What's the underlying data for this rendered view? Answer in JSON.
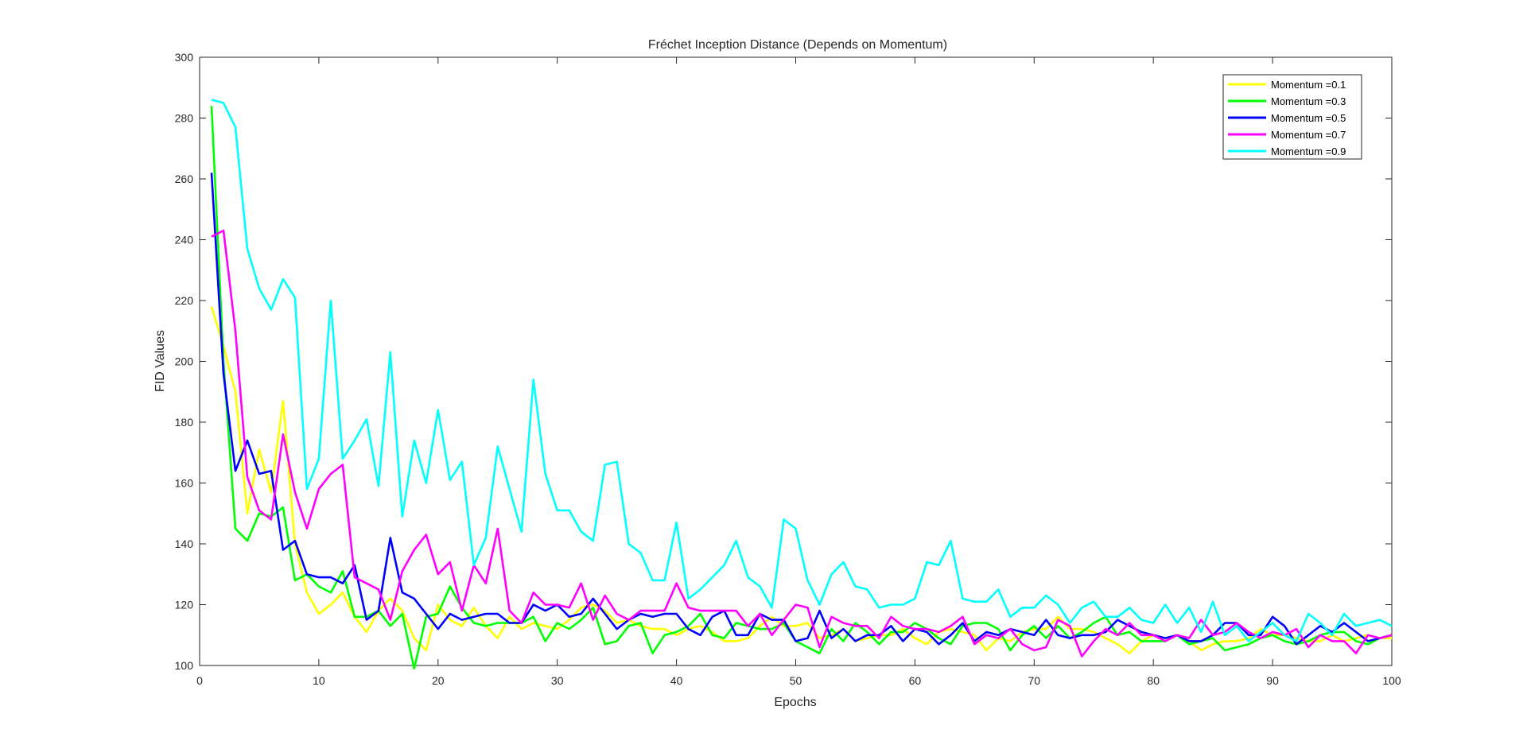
{
  "chart_data": {
    "type": "line",
    "title": "Fréchet Inception Distance (Depends on Momentum)",
    "xlabel": "Epochs",
    "ylabel": "FID Values",
    "xlim": [
      0,
      100
    ],
    "ylim": [
      100,
      300
    ],
    "xticks": [
      "0",
      "10",
      "20",
      "30",
      "40",
      "50",
      "60",
      "70",
      "80",
      "90",
      "100"
    ],
    "yticks": [
      "100",
      "120",
      "140",
      "160",
      "180",
      "200",
      "220",
      "240",
      "260",
      "280",
      "300"
    ],
    "grid": false,
    "legend_position": "top-right",
    "x": [
      1,
      2,
      3,
      4,
      5,
      6,
      7,
      8,
      9,
      10,
      11,
      12,
      13,
      14,
      15,
      16,
      17,
      18,
      19,
      20,
      21,
      22,
      23,
      24,
      25,
      26,
      27,
      28,
      29,
      30,
      31,
      32,
      33,
      34,
      35,
      36,
      37,
      38,
      39,
      40,
      41,
      42,
      43,
      44,
      45,
      46,
      47,
      48,
      49,
      50,
      51,
      52,
      53,
      54,
      55,
      56,
      57,
      58,
      59,
      60,
      61,
      62,
      63,
      64,
      65,
      66,
      67,
      68,
      69,
      70,
      71,
      72,
      73,
      74,
      75,
      76,
      77,
      78,
      79,
      80,
      81,
      82,
      83,
      84,
      85,
      86,
      87,
      88,
      89,
      90,
      91,
      92,
      93,
      94,
      95,
      96,
      97,
      98,
      99,
      100
    ],
    "series": [
      {
        "name": "Momentum =0.1",
        "color": "#ffff00",
        "values": [
          218,
          205,
          190,
          150,
          171,
          157,
          187,
          140,
          124,
          117,
          120,
          124,
          116,
          111,
          118,
          122,
          118,
          109,
          105,
          120,
          115,
          113,
          119,
          113,
          109,
          116,
          112,
          114,
          113,
          112,
          115,
          119,
          120,
          118,
          114,
          115,
          113,
          112,
          112,
          110,
          112,
          113,
          111,
          108,
          108,
          109,
          113,
          116,
          113,
          113,
          114,
          109,
          110,
          112,
          108,
          109,
          110,
          110,
          112,
          109,
          107,
          111,
          112,
          111,
          110,
          105,
          109,
          108,
          111,
          112,
          112,
          116,
          112,
          112,
          111,
          109,
          107,
          104,
          108,
          110,
          108,
          110,
          108,
          105,
          107,
          108,
          108,
          109,
          112,
          110,
          110,
          109,
          108,
          108,
          110,
          108,
          109,
          110,
          109,
          109
        ]
      },
      {
        "name": "Momentum =0.3",
        "color": "#00ff00",
        "values": [
          284,
          200,
          145,
          141,
          150,
          149,
          152,
          128,
          130,
          126,
          124,
          131,
          116,
          116,
          118,
          113,
          117,
          99,
          116,
          117,
          126,
          119,
          114,
          113,
          114,
          114,
          114,
          116,
          108,
          114,
          112,
          115,
          119,
          107,
          108,
          113,
          114,
          104,
          110,
          111,
          113,
          117,
          110,
          109,
          114,
          113,
          112,
          112,
          114,
          108,
          106,
          104,
          112,
          108,
          114,
          111,
          107,
          111,
          111,
          114,
          112,
          109,
          107,
          113,
          114,
          114,
          112,
          105,
          110,
          113,
          109,
          113,
          109,
          111,
          114,
          116,
          110,
          111,
          108,
          108,
          108,
          110,
          107,
          108,
          109,
          105,
          106,
          107,
          109,
          110,
          108,
          107,
          108,
          110,
          111,
          111,
          108,
          107,
          109,
          110
        ]
      },
      {
        "name": "Momentum =0.5",
        "color": "#0000ff",
        "values": [
          262,
          196,
          164,
          174,
          163,
          164,
          138,
          141,
          130,
          129,
          129,
          127,
          133,
          115,
          118,
          142,
          124,
          122,
          117,
          112,
          117,
          115,
          116,
          117,
          117,
          114,
          114,
          120,
          118,
          120,
          116,
          117,
          122,
          117,
          112,
          115,
          117,
          116,
          117,
          117,
          112,
          110,
          116,
          118,
          110,
          110,
          117,
          115,
          115,
          108,
          109,
          118,
          109,
          112,
          108,
          110,
          110,
          113,
          108,
          112,
          111,
          107,
          110,
          114,
          108,
          111,
          110,
          112,
          111,
          110,
          115,
          110,
          109,
          110,
          110,
          111,
          115,
          113,
          111,
          110,
          109,
          110,
          108,
          108,
          110,
          114,
          114,
          110,
          110,
          116,
          113,
          107,
          110,
          113,
          111,
          114,
          111,
          108,
          109,
          110
        ]
      },
      {
        "name": "Momentum =0.7",
        "color": "#ff00ff",
        "values": [
          241,
          243,
          210,
          162,
          151,
          148,
          176,
          157,
          145,
          158,
          163,
          166,
          129,
          127,
          125,
          115,
          131,
          138,
          143,
          130,
          134,
          118,
          133,
          127,
          145,
          118,
          114,
          124,
          120,
          120,
          119,
          127,
          115,
          123,
          117,
          115,
          118,
          118,
          118,
          127,
          119,
          118,
          118,
          118,
          118,
          113,
          117,
          110,
          115,
          120,
          119,
          106,
          116,
          114,
          113,
          113,
          109,
          116,
          113,
          112,
          112,
          111,
          113,
          116,
          107,
          110,
          109,
          112,
          107,
          105,
          106,
          115,
          113,
          103,
          108,
          112,
          110,
          114,
          110,
          110,
          108,
          110,
          109,
          115,
          110,
          111,
          114,
          111,
          109,
          111,
          110,
          112,
          106,
          110,
          108,
          108,
          104,
          110,
          109,
          110
        ]
      },
      {
        "name": "Momentum =0.9",
        "color": "#00ffff",
        "values": [
          286,
          285,
          277,
          237,
          224,
          217,
          227,
          221,
          158,
          168,
          220,
          168,
          174,
          181,
          159,
          203,
          149,
          174,
          160,
          184,
          161,
          167,
          133,
          142,
          172,
          158,
          144,
          194,
          163,
          151,
          151,
          144,
          141,
          166,
          167,
          140,
          137,
          128,
          128,
          147,
          122,
          125,
          129,
          133,
          141,
          129,
          126,
          119,
          148,
          145,
          128,
          120,
          130,
          134,
          126,
          125,
          119,
          120,
          120,
          122,
          134,
          133,
          141,
          122,
          121,
          121,
          125,
          116,
          119,
          119,
          123,
          120,
          114,
          119,
          121,
          116,
          116,
          119,
          115,
          114,
          120,
          114,
          119,
          111,
          121,
          110,
          113,
          108,
          111,
          114,
          110,
          108,
          117,
          114,
          110,
          117,
          113,
          114,
          115,
          113
        ]
      }
    ]
  }
}
